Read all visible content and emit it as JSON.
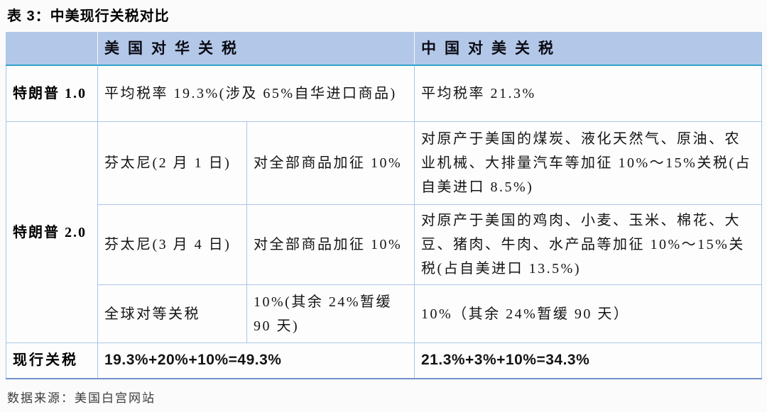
{
  "page": {
    "title": "表 3：中美现行关税对比",
    "source": "数据来源：美国白宫网站"
  },
  "table": {
    "header": {
      "col_us": "美国对华关税",
      "col_cn": "中国对美关税"
    },
    "rows": {
      "trump1": {
        "label": "特朗普 1.0",
        "us": "平均税率 19.3%(涉及 65%自华进口商品)",
        "cn": "平均税率 21.3%"
      },
      "trump2": {
        "label": "特朗普 2.0",
        "fentanyl_feb": {
          "name": "芬太尼(2 月 1 日)",
          "us": "对全部商品加征 10%",
          "cn": "对原产于美国的煤炭、液化天然气、原油、农业机械、大排量汽车等加征 10%～15%关税(占自美进口 8.5%)"
        },
        "fentanyl_mar": {
          "name": "芬太尼(3 月 4 日)",
          "us": "对全部商品加征 10%",
          "cn": "对原产于美国的鸡肉、小麦、玉米、棉花、大豆、猪肉、牛肉、水产品等加征 10%～15%关税(占自美进口 13.5%)"
        },
        "global_reciprocal": {
          "name": "全球对等关税",
          "us": "10%(其余 24%暂缓 90 天)",
          "cn": "10%（其余 24%暂缓 90 天）"
        }
      },
      "current": {
        "label": "现行关税",
        "us": "19.3%+20%+10%=49.3%",
        "cn": "21.3%+3%+10%=34.3%"
      }
    },
    "colors": {
      "header_bg": "#b3c8e8",
      "header_underline": "#31a3cb",
      "grid_border": "#a9c6e8",
      "outer_bottom_border": "#7290ce"
    }
  }
}
